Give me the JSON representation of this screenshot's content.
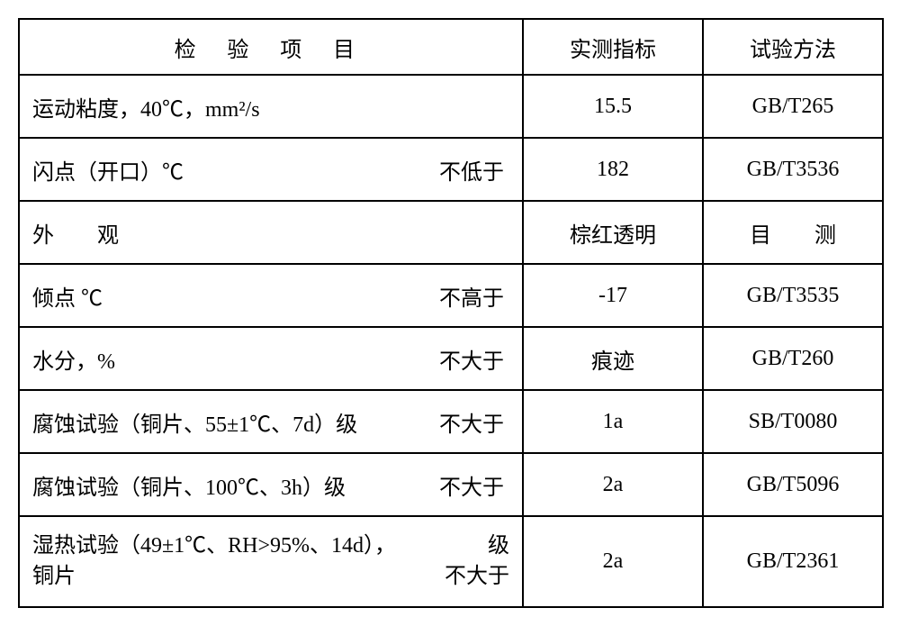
{
  "headers": {
    "item": "检 验 项 目",
    "measured": "实测指标",
    "method": "试验方法"
  },
  "rows": [
    {
      "item_left": "运动粘度，40℃，mm²/s",
      "item_right": "",
      "measured": "15.5",
      "method": "GB/T265"
    },
    {
      "item_left": "闪点（开口）℃",
      "item_right": "不低于",
      "measured": "182",
      "method": "GB/T3536"
    },
    {
      "item_left": "外　　观",
      "item_right": "",
      "measured": "棕红透明",
      "method": "目　　测"
    },
    {
      "item_left": "倾点 ℃",
      "item_right": "不高于",
      "measured": "-17",
      "method": "GB/T3535"
    },
    {
      "item_left": "水分，%",
      "item_right": "不大于",
      "measured": "痕迹",
      "method": "GB/T260"
    },
    {
      "item_left": "腐蚀试验（铜片、55±1℃、7d）级",
      "item_right": "不大于",
      "measured": "1a",
      "method": "SB/T0080"
    },
    {
      "item_left": "腐蚀试验（铜片、100℃、3h）级",
      "item_right": "不大于",
      "measured": "2a",
      "method": "GB/T5096"
    },
    {
      "item_left_line1": "湿热试验（49±1℃、RH>95%、14d），",
      "item_left_line2": "铜片",
      "item_right_line1": "级",
      "item_right_line2": "不大于",
      "measured": "2a",
      "method": "GB/T2361",
      "multiline": true
    }
  ]
}
